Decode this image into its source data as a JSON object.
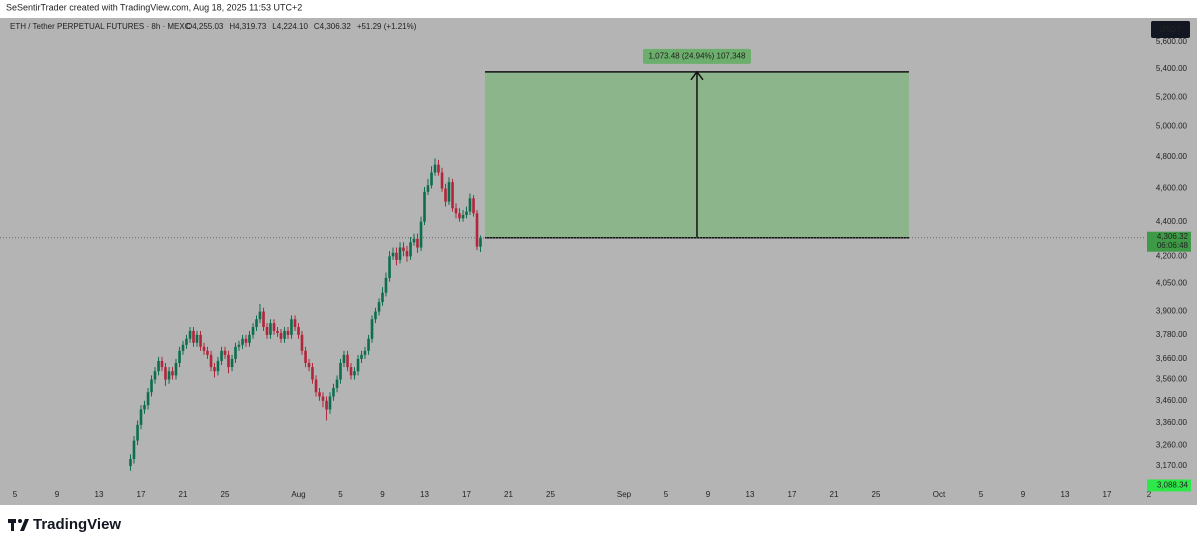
{
  "header": {
    "credit": "SeSentirTrader created with TradingView.com, Aug 18, 2025 11:53 UTC+2"
  },
  "footer": {
    "brand": "TradingView"
  },
  "chart_data": {
    "type": "candlestick",
    "legend_title": "ETH / Tether PERPETUAL FUTURES · 8h · MEXC",
    "legend_values": [
      "O4,255.03",
      "H4,319.73",
      "L4,224.10",
      "C4,306.32",
      "+51.29 (+1.21%)"
    ],
    "currency": "USDT",
    "log_scale": true,
    "grid": false,
    "xlim": [
      3.57,
      112.62
    ],
    "ylim": [
      3082,
      5783
    ],
    "xticks": [
      5,
      9,
      13,
      17,
      21,
      25,
      {
        "value": 32,
        "label": "Aug"
      },
      {
        "value": 36,
        "label": "5"
      },
      {
        "value": 40,
        "label": "9"
      },
      {
        "value": 44,
        "label": "13"
      },
      {
        "value": 48,
        "label": "17"
      },
      {
        "value": 52,
        "label": "21"
      },
      {
        "value": 56,
        "label": "25"
      },
      {
        "value": 63,
        "label": "Sep"
      },
      {
        "value": 67,
        "label": "5"
      },
      {
        "value": 71,
        "label": "9"
      },
      {
        "value": 75,
        "label": "13"
      },
      {
        "value": 79,
        "label": "17"
      },
      {
        "value": 83,
        "label": "21"
      },
      {
        "value": 87,
        "label": "25"
      },
      {
        "value": 93,
        "label": "Oct"
      },
      {
        "value": 97,
        "label": "5"
      },
      {
        "value": 101,
        "label": "9"
      },
      {
        "value": 105,
        "label": "13"
      },
      {
        "value": 109,
        "label": "17"
      },
      {
        "value": 113,
        "label": "2"
      }
    ],
    "yticks": [
      {
        "value": 5600,
        "label": "5,600.00"
      },
      {
        "value": 5400,
        "label": "5,400.00"
      },
      {
        "value": 5200,
        "label": "5,200.00"
      },
      {
        "value": 5000,
        "label": "5,000.00"
      },
      {
        "value": 4800,
        "label": "4,800.00"
      },
      {
        "value": 4600,
        "label": "4,600.00"
      },
      {
        "value": 4400,
        "label": "4,400.00"
      },
      {
        "value": 4200,
        "label": "4,200.00"
      },
      {
        "value": 4050,
        "label": "4,050.00"
      },
      {
        "value": 3900,
        "label": "3,900.00"
      },
      {
        "value": 3780,
        "label": "3,780.00"
      },
      {
        "value": 3660,
        "label": "3,660.00"
      },
      {
        "value": 3560,
        "label": "3,560.00"
      },
      {
        "value": 3460,
        "label": "3,460.00"
      },
      {
        "value": 3360,
        "label": "3,360.00"
      },
      {
        "value": 3260,
        "label": "3,260.00"
      },
      {
        "value": 3170,
        "label": "3,170.00"
      }
    ],
    "up_color": "#0d6e4f",
    "down_color": "#b0263a",
    "x": [
      16,
      16.33,
      16.67,
      17,
      17.33,
      17.67,
      18,
      18.33,
      18.67,
      19,
      19.33,
      19.67,
      20,
      20.33,
      20.67,
      21,
      21.33,
      21.67,
      22,
      22.33,
      22.67,
      23,
      23.33,
      23.67,
      24,
      24.33,
      24.67,
      25,
      25.33,
      25.67,
      26,
      26.33,
      26.67,
      27,
      27.33,
      27.67,
      28,
      28.33,
      28.67,
      29,
      29.33,
      29.67,
      30,
      30.33,
      30.67,
      31,
      31.33,
      31.67,
      32,
      32.33,
      32.67,
      33,
      33.33,
      33.67,
      34,
      34.33,
      34.67,
      35,
      35.33,
      35.67,
      36,
      36.33,
      36.67,
      37,
      37.33,
      37.67,
      38,
      38.33,
      38.67,
      39,
      39.33,
      39.67,
      40,
      40.33,
      40.67,
      41,
      41.33,
      41.67,
      42,
      42.33,
      42.67,
      43,
      43.33,
      43.67,
      44,
      44.33,
      44.67,
      45,
      45.33,
      45.67,
      46,
      46.33,
      46.67,
      47,
      47.33,
      47.67,
      48,
      48.33,
      48.67,
      49,
      49.33
    ],
    "open": [
      3170,
      3200,
      3280,
      3350,
      3420,
      3440,
      3500,
      3560,
      3600,
      3650,
      3620,
      3560,
      3600,
      3580,
      3640,
      3700,
      3730,
      3760,
      3800,
      3740,
      3780,
      3720,
      3700,
      3680,
      3620,
      3600,
      3650,
      3700,
      3680,
      3620,
      3660,
      3720,
      3730,
      3760,
      3740,
      3780,
      3820,
      3860,
      3900,
      3820,
      3780,
      3840,
      3800,
      3790,
      3760,
      3800,
      3780,
      3860,
      3820,
      3780,
      3700,
      3640,
      3620,
      3560,
      3500,
      3480,
      3460,
      3420,
      3480,
      3520,
      3560,
      3640,
      3680,
      3620,
      3580,
      3600,
      3660,
      3680,
      3700,
      3760,
      3860,
      3900,
      3950,
      4000,
      4080,
      4200,
      4220,
      4180,
      4250,
      4230,
      4200,
      4280,
      4300,
      4250,
      4400,
      4580,
      4620,
      4700,
      4750,
      4700,
      4600,
      4520,
      4640,
      4480,
      4450,
      4420,
      4440,
      4460,
      4540,
      4450,
      4255.03
    ],
    "high": [
      3220,
      3300,
      3370,
      3440,
      3460,
      3520,
      3580,
      3620,
      3670,
      3670,
      3640,
      3620,
      3620,
      3660,
      3720,
      3750,
      3780,
      3820,
      3820,
      3800,
      3800,
      3740,
      3720,
      3700,
      3640,
      3670,
      3720,
      3720,
      3700,
      3680,
      3740,
      3750,
      3780,
      3780,
      3800,
      3840,
      3880,
      3940,
      3920,
      3840,
      3860,
      3860,
      3820,
      3810,
      3820,
      3820,
      3880,
      3880,
      3840,
      3800,
      3720,
      3660,
      3640,
      3580,
      3520,
      3500,
      3480,
      3500,
      3540,
      3580,
      3660,
      3700,
      3700,
      3640,
      3620,
      3680,
      3700,
      3720,
      3780,
      3880,
      3920,
      3970,
      4030,
      4110,
      4230,
      4250,
      4250,
      4280,
      4280,
      4260,
      4310,
      4330,
      4330,
      4430,
      4610,
      4660,
      4740,
      4790,
      4780,
      4730,
      4630,
      4670,
      4660,
      4510,
      4480,
      4470,
      4490,
      4570,
      4560,
      4470,
      4319.73
    ],
    "low": [
      3150,
      3180,
      3260,
      3330,
      3400,
      3420,
      3480,
      3540,
      3580,
      3600,
      3530,
      3540,
      3560,
      3560,
      3620,
      3680,
      3710,
      3740,
      3720,
      3720,
      3700,
      3680,
      3660,
      3600,
      3570,
      3580,
      3630,
      3660,
      3590,
      3600,
      3640,
      3700,
      3710,
      3720,
      3720,
      3760,
      3800,
      3840,
      3800,
      3760,
      3760,
      3780,
      3770,
      3740,
      3740,
      3760,
      3760,
      3800,
      3760,
      3680,
      3620,
      3600,
      3540,
      3480,
      3460,
      3430,
      3370,
      3400,
      3460,
      3500,
      3540,
      3620,
      3600,
      3560,
      3560,
      3580,
      3640,
      3660,
      3680,
      3740,
      3840,
      3880,
      3930,
      3980,
      4060,
      4180,
      4150,
      4160,
      4200,
      4170,
      4180,
      4260,
      4220,
      4230,
      4380,
      4560,
      4600,
      4680,
      4680,
      4580,
      4490,
      4500,
      4460,
      4420,
      4400,
      4400,
      4420,
      4440,
      4430,
      4235,
      4224.1
    ],
    "close": [
      3200,
      3280,
      3350,
      3420,
      3440,
      3500,
      3560,
      3600,
      3650,
      3620,
      3560,
      3600,
      3580,
      3640,
      3700,
      3730,
      3760,
      3800,
      3740,
      3780,
      3720,
      3700,
      3680,
      3620,
      3600,
      3650,
      3700,
      3680,
      3620,
      3660,
      3720,
      3730,
      3760,
      3740,
      3780,
      3820,
      3860,
      3900,
      3820,
      3780,
      3840,
      3800,
      3790,
      3760,
      3800,
      3780,
      3860,
      3820,
      3780,
      3700,
      3640,
      3620,
      3560,
      3500,
      3480,
      3460,
      3420,
      3480,
      3520,
      3560,
      3640,
      3680,
      3620,
      3580,
      3600,
      3660,
      3680,
      3700,
      3760,
      3860,
      3900,
      3950,
      4000,
      4080,
      4200,
      4220,
      4180,
      4250,
      4230,
      4200,
      4280,
      4300,
      4250,
      4400,
      4580,
      4620,
      4700,
      4750,
      4700,
      4600,
      4520,
      4640,
      4480,
      4450,
      4420,
      4440,
      4460,
      4540,
      4450,
      4255.03,
      4306.32
    ],
    "last_price": {
      "value": 4306.32,
      "label": "4,306.32",
      "countdown": "06:06:48"
    },
    "low_marker": {
      "value": 3088.34,
      "label": "3,088.34"
    },
    "position": {
      "x": [
        49.76,
        90.14
      ],
      "entry": 4306.32,
      "target": 5379.8,
      "label": "1,073.48 (24.94%) 107,348",
      "color": "#8db58b"
    }
  }
}
